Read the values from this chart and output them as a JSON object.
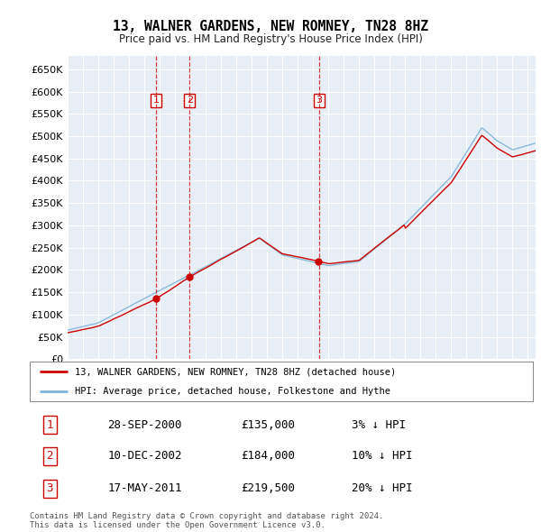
{
  "title": "13, WALNER GARDENS, NEW ROMNEY, TN28 8HZ",
  "subtitle": "Price paid vs. HM Land Registry's House Price Index (HPI)",
  "ylim": [
    0,
    680000
  ],
  "yticks": [
    0,
    50000,
    100000,
    150000,
    200000,
    250000,
    300000,
    350000,
    400000,
    450000,
    500000,
    550000,
    600000,
    650000
  ],
  "xlim_start": 1995.0,
  "xlim_end": 2025.5,
  "background_color": "#ffffff",
  "plot_bg_color": "#e8eef5",
  "grid_color": "#ffffff",
  "hpi_line_color": "#7fb3d9",
  "price_line_color": "#cc0000",
  "transactions": [
    {
      "label": "1",
      "date_float": 2000.75,
      "price": 135000,
      "pct": "3%",
      "date_str": "28-SEP-2000"
    },
    {
      "label": "2",
      "date_float": 2002.95,
      "price": 184000,
      "pct": "10%",
      "date_str": "10-DEC-2002"
    },
    {
      "label": "3",
      "date_float": 2011.37,
      "price": 219500,
      "pct": "20%",
      "date_str": "17-MAY-2011"
    }
  ],
  "legend_entries": [
    {
      "label": "13, WALNER GARDENS, NEW ROMNEY, TN28 8HZ (detached house)",
      "color": "#cc0000"
    },
    {
      "label": "HPI: Average price, detached house, Folkestone and Hythe",
      "color": "#7fb3d9"
    }
  ],
  "footnote": "Contains HM Land Registry data © Crown copyright and database right 2024.\nThis data is licensed under the Open Government Licence v3.0.",
  "table_rows": [
    [
      "1",
      "28-SEP-2000",
      "£135,000",
      "3% ↓ HPI"
    ],
    [
      "2",
      "10-DEC-2002",
      "£184,000",
      "10% ↓ HPI"
    ],
    [
      "3",
      "17-MAY-2011",
      "£219,500",
      "20% ↓ HPI"
    ]
  ]
}
